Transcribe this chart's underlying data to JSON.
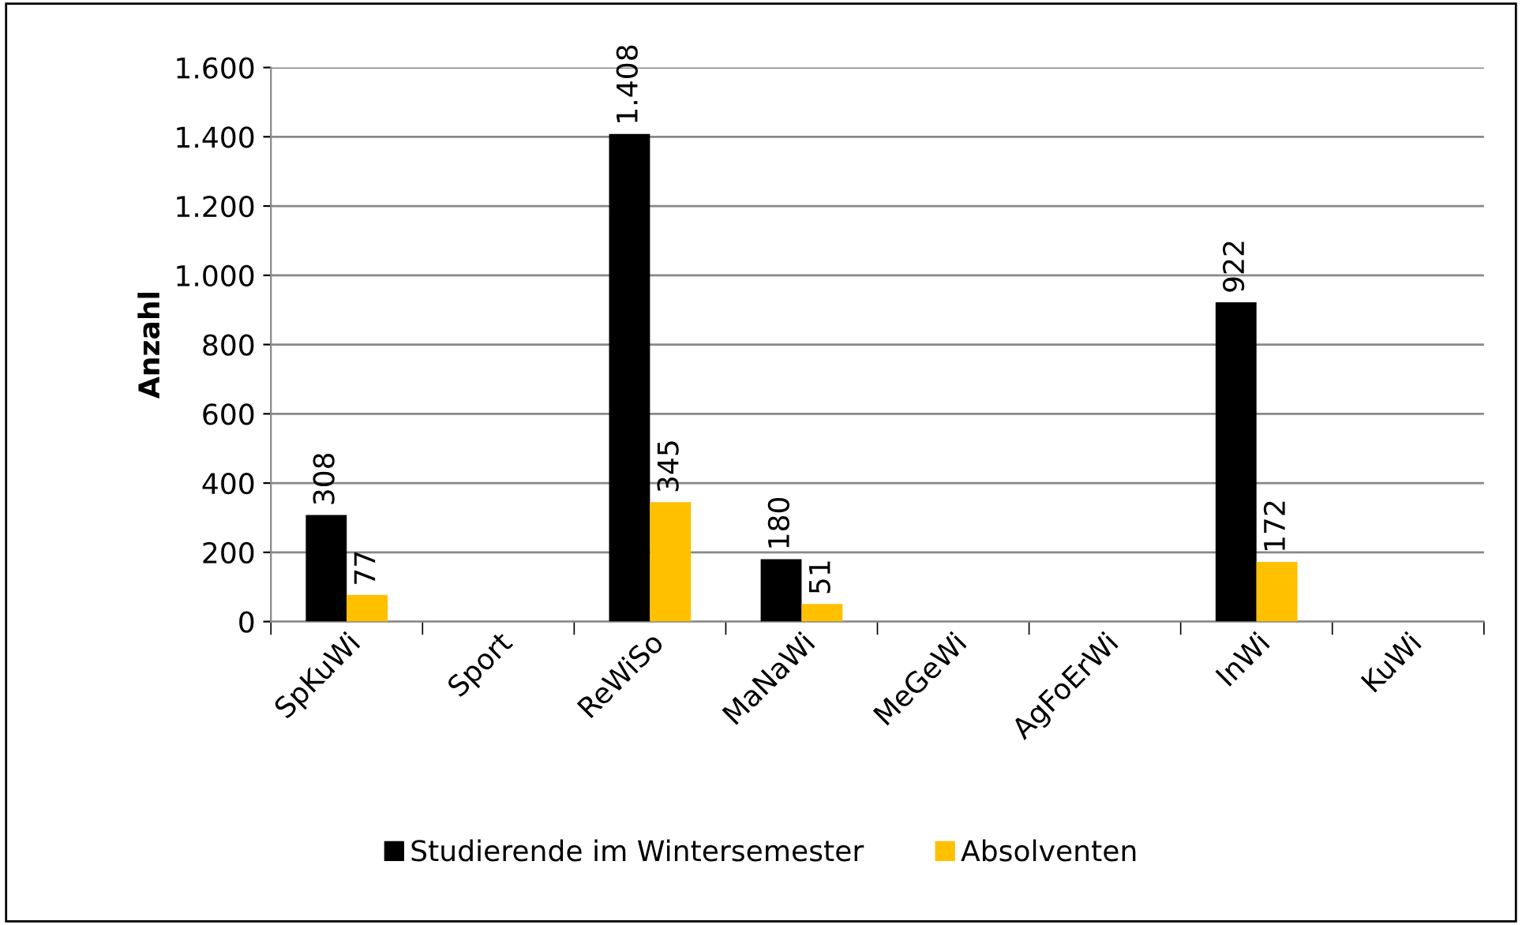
{
  "chart_data": {
    "type": "bar",
    "ylabel": "Anzahl",
    "categories": [
      "SpKuWi",
      "Sport",
      "ReWiSo",
      "MaNaWi",
      "MeGeWi",
      "AgFoErWi",
      "InWi",
      "KuWi"
    ],
    "series": [
      {
        "name": "Studierende im Wintersemester",
        "color": "#000000",
        "values": [
          308,
          null,
          1408,
          180,
          null,
          null,
          922,
          null
        ],
        "value_labels": [
          "308",
          null,
          "1.408",
          "180",
          null,
          null,
          "922",
          null
        ]
      },
      {
        "name": "Absolventen",
        "color": "#ffc000",
        "values": [
          77,
          null,
          345,
          51,
          null,
          null,
          172,
          null
        ],
        "value_labels": [
          "77",
          null,
          "345",
          "51",
          null,
          null,
          "172",
          null
        ]
      }
    ],
    "ylim": [
      0,
      1600
    ],
    "yticks": [
      0,
      {
        "value": 200,
        "label": "200"
      },
      {
        "value": 400,
        "label": "400"
      },
      {
        "value": 600,
        "label": "600"
      },
      {
        "value": 800,
        "label": "800"
      },
      {
        "value": 1000,
        "label": "1.000"
      },
      {
        "value": 1200,
        "label": "1.200"
      },
      {
        "value": 1400,
        "label": "1.400"
      },
      {
        "value": 1600,
        "label": "1.600"
      }
    ],
    "grid": "y",
    "legend": "bottom"
  }
}
